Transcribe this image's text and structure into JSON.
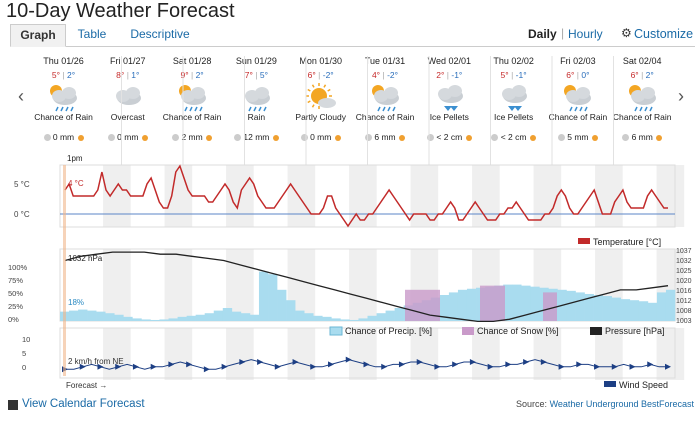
{
  "title": "10-Day Weather Forecast",
  "tabs": [
    {
      "label": "Graph"
    },
    {
      "label": "Table"
    },
    {
      "label": "Descriptive"
    }
  ],
  "view": {
    "daily": "Daily",
    "sep": "|",
    "hourly": "Hourly",
    "customize": "Customize"
  },
  "nav": {
    "prev": "‹",
    "next": "›"
  },
  "days": [
    {
      "date": "Thu 01/26",
      "hi": "5°",
      "lo": "2°",
      "cond": "Chance of Rain",
      "precip": "0 mm",
      "icon": "partly-rain-icon"
    },
    {
      "date": "Fri 01/27",
      "hi": "8°",
      "lo": "1°",
      "cond": "Overcast",
      "precip": "0 mm",
      "icon": "cloud-icon"
    },
    {
      "date": "Sat 01/28",
      "hi": "9°",
      "lo": "2°",
      "cond": "Chance of Rain",
      "precip": "2 mm",
      "icon": "partly-rain-icon"
    },
    {
      "date": "Sun 01/29",
      "hi": "7°",
      "lo": "5°",
      "cond": "Rain",
      "precip": "12 mm",
      "icon": "rain-icon"
    },
    {
      "date": "Mon 01/30",
      "hi": "6°",
      "lo": "-2°",
      "cond": "Partly Cloudy",
      "precip": "0 mm",
      "icon": "partly-cloudy-icon"
    },
    {
      "date": "Tue 01/31",
      "hi": "4°",
      "lo": "-2°",
      "cond": "Chance of Rain",
      "precip": "6 mm",
      "icon": "partly-rain-icon"
    },
    {
      "date": "Wed 02/01",
      "hi": "2°",
      "lo": "-1°",
      "cond": "Ice Pellets",
      "precip": "< 2 cm",
      "icon": "ice-pellets-icon"
    },
    {
      "date": "Thu 02/02",
      "hi": "5°",
      "lo": "-1°",
      "cond": "Ice Pellets",
      "precip": "< 2 cm",
      "icon": "ice-pellets-icon"
    },
    {
      "date": "Fri 02/03",
      "hi": "6°",
      "lo": "0°",
      "cond": "Chance of Rain",
      "precip": "5 mm",
      "icon": "partly-rain-icon"
    },
    {
      "date": "Sat 02/04",
      "hi": "6°",
      "lo": "2°",
      "cond": "Chance of Rain",
      "precip": "6 mm",
      "icon": "partly-rain-icon"
    }
  ],
  "chart": {
    "now_label": "1pm",
    "temp_marker": "4 °C",
    "temp_axis": [
      "5 °C",
      "0 °C"
    ],
    "temp_legend": "Temperature [°C]",
    "pct_axis": [
      "100%",
      "75%",
      "50%",
      "25%",
      "0%"
    ],
    "pressure_axis": [
      "1037",
      "1032",
      "1025",
      "1020",
      "1016",
      "1012",
      "1008",
      "1003"
    ],
    "pressure_marker": "1032 hPa",
    "precip_marker": "18%",
    "legend_precip": "Chance of Precip. [%]",
    "legend_snow": "Chance of Snow [%]",
    "legend_pressure": "Pressure [hPa]",
    "wind_axis": [
      "10",
      "5",
      "0"
    ],
    "wind_marker": "2 km/h from NE",
    "forecast_label": "Forecast →",
    "wind_legend": "Wind Speed",
    "colors": {
      "temp": "#c22a2a",
      "precip": "#a9dcef",
      "snow": "#c99ac9",
      "pressure": "#222222",
      "wind": "#1d3f84",
      "now": "#f0b58a"
    }
  },
  "footer": {
    "link": "View Calendar Forecast",
    "source_prefix": "Source:",
    "source_link": "Weather Underground BestForecast"
  }
}
